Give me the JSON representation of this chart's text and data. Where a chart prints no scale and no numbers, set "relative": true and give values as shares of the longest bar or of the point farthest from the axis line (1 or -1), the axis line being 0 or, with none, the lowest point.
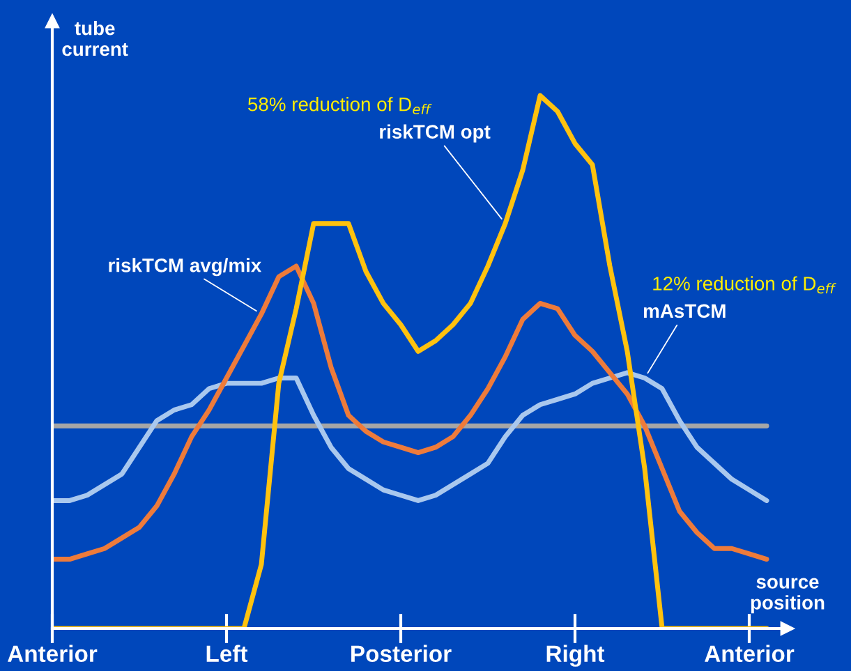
{
  "chart_data": {
    "type": "line",
    "relative": true,
    "ylabel": "tube\ncurrent",
    "xlabel": "source\nposition",
    "categories": [
      "Anterior",
      null,
      null,
      null,
      null,
      null,
      null,
      null,
      null,
      null,
      "Left",
      null,
      null,
      null,
      null,
      null,
      null,
      null,
      null,
      null,
      "Posterior",
      null,
      null,
      null,
      null,
      null,
      null,
      null,
      null,
      null,
      "Right",
      null,
      null,
      null,
      null,
      null,
      null,
      null,
      null,
      null,
      "Anterior",
      null
    ],
    "annotations": [
      "58% reduction of D$_{eff}$",
      "12% reduction of D$_{eff}$"
    ],
    "series": [
      {
        "color": "#a6a6a6",
        "values": [
          0.38,
          0.38,
          0.38,
          0.38,
          0.38,
          0.38,
          0.38,
          0.38,
          0.38,
          0.38,
          0.38,
          0.38,
          0.38,
          0.38,
          0.38,
          0.38,
          0.38,
          0.38,
          0.38,
          0.38,
          0.38,
          0.38,
          0.38,
          0.38,
          0.38,
          0.38,
          0.38,
          0.38,
          0.38,
          0.38,
          0.38,
          0.38,
          0.38,
          0.38,
          0.38,
          0.38,
          0.38,
          0.38,
          0.38,
          0.38,
          0.38,
          0.38
        ]
      },
      {
        "name": "mAsTCM",
        "color": "#a9c8ee",
        "values": [
          0.24,
          0.24,
          0.25,
          0.27,
          0.29,
          0.34,
          0.39,
          0.41,
          0.42,
          0.45,
          0.46,
          0.46,
          0.46,
          0.47,
          0.47,
          0.4,
          0.34,
          0.3,
          0.28,
          0.26,
          0.25,
          0.24,
          0.25,
          0.27,
          0.29,
          0.31,
          0.36,
          0.4,
          0.42,
          0.43,
          0.44,
          0.46,
          0.47,
          0.48,
          0.47,
          0.45,
          0.39,
          0.34,
          0.31,
          0.28,
          0.26,
          0.24
        ]
      },
      {
        "name": "riskTCM avg/mix",
        "color": "#ee7b3a",
        "values": [
          0.13,
          0.13,
          0.14,
          0.15,
          0.17,
          0.19,
          0.23,
          0.29,
          0.36,
          0.41,
          0.47,
          0.53,
          0.59,
          0.66,
          0.68,
          0.61,
          0.49,
          0.4,
          0.37,
          0.35,
          0.34,
          0.33,
          0.34,
          0.36,
          0.4,
          0.45,
          0.51,
          0.58,
          0.61,
          0.6,
          0.55,
          0.52,
          0.48,
          0.44,
          0.38,
          0.3,
          0.22,
          0.18,
          0.15,
          0.15,
          0.14,
          0.13
        ]
      },
      {
        "name": "riskTCM opt",
        "color": "#ffc20e",
        "values": [
          0,
          0,
          0,
          0,
          0,
          0,
          0,
          0,
          0,
          0,
          0,
          0,
          0.12,
          0.46,
          0.6,
          0.76,
          0.76,
          0.76,
          0.67,
          0.61,
          0.57,
          0.52,
          0.54,
          0.57,
          0.61,
          0.68,
          0.76,
          0.86,
          1.0,
          0.97,
          0.91,
          0.87,
          0.68,
          0.52,
          0.3,
          0,
          0,
          0,
          0,
          0,
          0,
          0
        ]
      }
    ]
  }
}
